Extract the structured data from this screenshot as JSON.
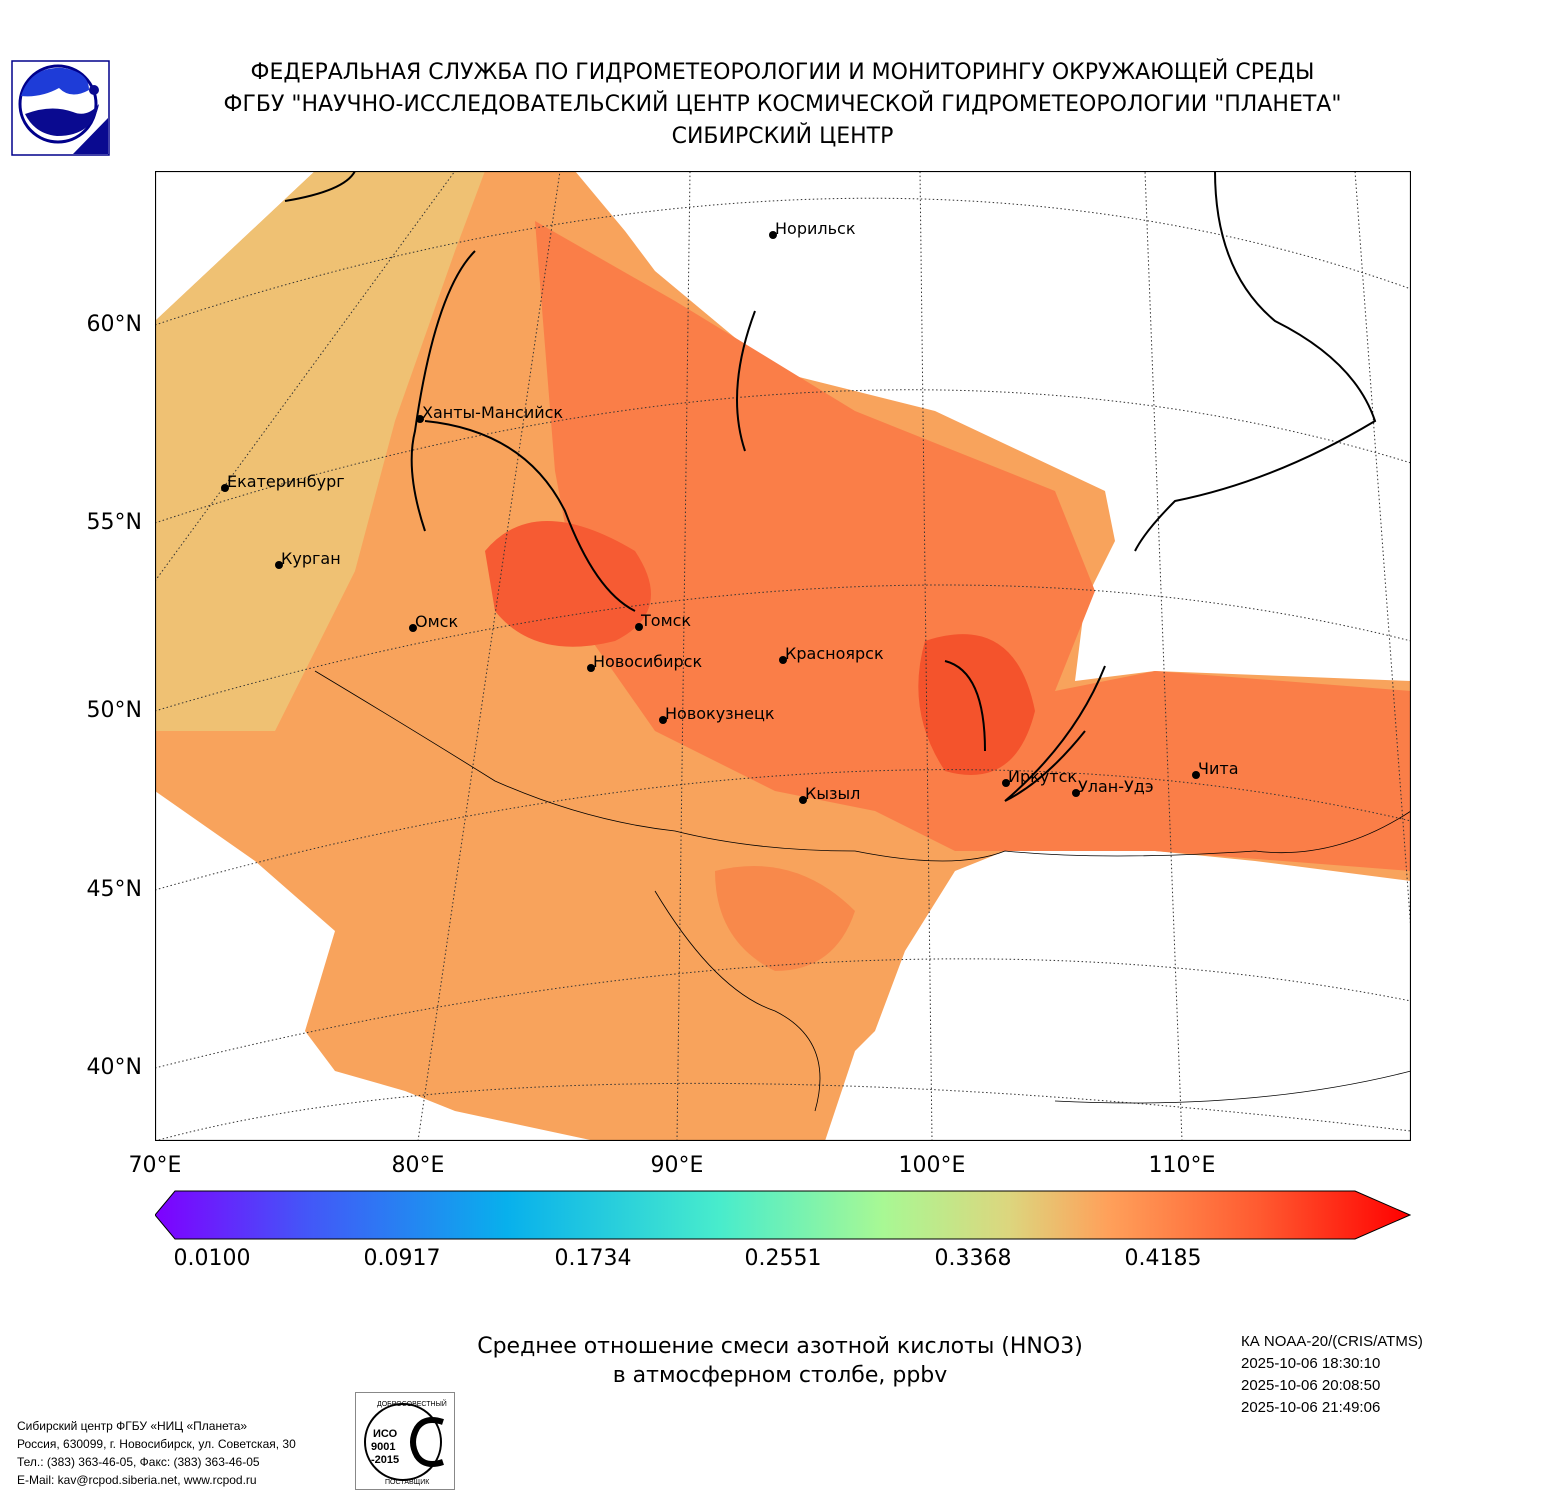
{
  "header": {
    "line1": "ФЕДЕРАЛЬНАЯ СЛУЖБА ПО ГИДРОМЕТЕОРОЛОГИИ И МОНИТОРИНГУ ОКРУЖАЮЩЕЙ СРЕДЫ",
    "line2": "ФГБУ \"НАУЧНО-ИССЛЕДОВАТЕЛЬСКИЙ ЦЕНТР КОСМИЧЕСКОЙ ГИДРОМЕТЕОРОЛОГИИ \"ПЛАНЕТА\"",
    "line3": "СИБИРСКИЙ ЦЕНТР"
  },
  "map": {
    "lat_labels": [
      "60°N",
      "55°N",
      "50°N",
      "45°N",
      "40°N"
    ],
    "lon_labels": [
      "70°E",
      "80°E",
      "90°E",
      "100°E",
      "110°E"
    ],
    "cities": [
      "Норильск",
      "Ханты-Мансийск",
      "Екатеринбург",
      "Курган",
      "Омск",
      "Томск",
      "Новосибирск",
      "Красноярск",
      "Новокузнецк",
      "Кызыл",
      "Иркутск",
      "Улан-Удэ",
      "Чита"
    ]
  },
  "colorbar": {
    "ticks": [
      "0.0100",
      "0.0917",
      "0.1734",
      "0.2551",
      "0.3368",
      "0.4185"
    ],
    "colors": [
      "#7f00ff",
      "#3f5cf8",
      "#00b4ec",
      "#40ecd4",
      "#9cfc9c",
      "#d8dc84",
      "#ffa256",
      "#ff5a2e",
      "#ff0000"
    ]
  },
  "title": {
    "line1": "Среднее отношение смеси азотной кислоты (HNO3)",
    "line2": "в атмосферном столбе, ppbv"
  },
  "satellite": {
    "name": "КА NOAA-20/(CRIS/ATMS)",
    "times": [
      "2025-10-06 18:30:10",
      "2025-10-06 20:08:50",
      "2025-10-06 21:49:06"
    ]
  },
  "footer": {
    "org": "Сибирский центр ФГБУ «НИЦ «Планета»",
    "address": "Россия, 630099, г. Новосибирск, ул. Советская, 30",
    "phone": "Тел.: (383) 363-46-05, Факс: (383) 363-46-05",
    "email": "E-Mail: kav@rcpod.siberia.net, www.rcpod.ru",
    "iso_top": "ДОБРОСОВЕСТНЫЙ",
    "iso_mid": "ИСО 9001 -2015",
    "iso_bottom": "ПОСТАВЩИК"
  }
}
